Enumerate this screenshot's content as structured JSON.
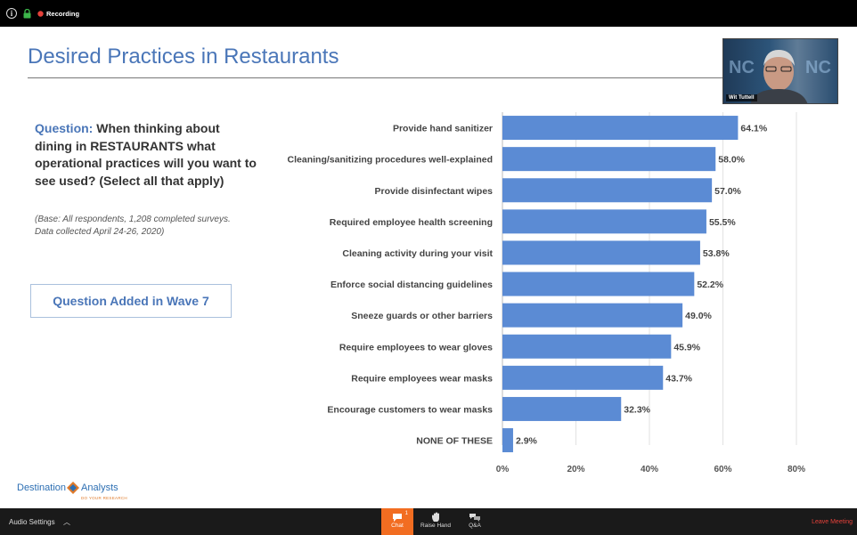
{
  "recording": {
    "label": "Recording",
    "status_color": "#e5413a"
  },
  "slide": {
    "title": "Desired Practices in Restaurants",
    "question_label": "Question:",
    "question_text": "When thinking about dining in RESTAURANTS what operational practices will you want to see used? (Select all that apply)",
    "base_note": "(Base: All respondents, 1,208 completed surveys. Data collected April 24-26, 2020)",
    "wave_note": "Question Added in Wave 7",
    "logo": {
      "name_a": "Destination",
      "name_b": "Analysts",
      "tagline": "DO YOUR RESEARCH"
    }
  },
  "chart_data": {
    "type": "bar",
    "orientation": "horizontal",
    "categories": [
      "Provide hand sanitizer",
      "Cleaning/sanitizing procedures well-explained",
      "Provide disinfectant wipes",
      "Required employee health screening",
      "Cleaning activity during your visit",
      "Enforce social distancing guidelines",
      "Sneeze guards or other barriers",
      "Require employees to wear gloves",
      "Require employees wear masks",
      "Encourage customers to wear masks",
      "NONE OF THESE"
    ],
    "values": [
      64.1,
      58.0,
      57.0,
      55.5,
      53.8,
      52.2,
      49.0,
      45.9,
      43.7,
      32.3,
      2.9
    ],
    "data_labels": [
      "64.1%",
      "58.0%",
      "57.0%",
      "55.5%",
      "53.8%",
      "52.2%",
      "49.0%",
      "45.9%",
      "43.7%",
      "32.3%",
      "2.9%"
    ],
    "xlim": [
      0,
      80
    ],
    "xticks": [
      "0%",
      "20%",
      "40%",
      "60%",
      "80%"
    ],
    "grid": true,
    "bar_color": "#5b8bd4"
  },
  "video": {
    "participant": "Wit Tuttell"
  },
  "toolbar": {
    "audio_settings": "Audio Settings",
    "chat": "Chat",
    "chat_count": "1",
    "raise_hand": "Raise Hand",
    "qa": "Q&A",
    "leave": "Leave Meeting"
  },
  "colors": {
    "accent": "#4a76b8",
    "chat_active": "#f26d21",
    "leave": "#e5413a"
  }
}
